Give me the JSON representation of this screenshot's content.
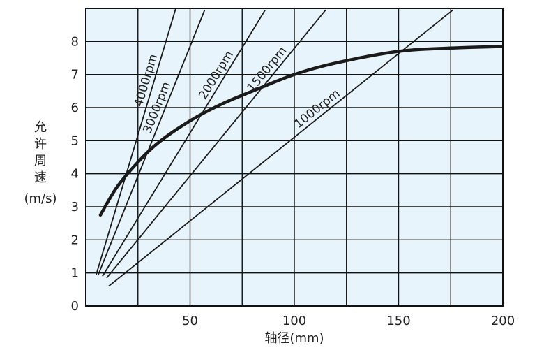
{
  "chart_data": {
    "type": "line",
    "title": "",
    "xlabel": "轴径(mm)",
    "ylabel_chars": [
      "允",
      "许",
      "周",
      "速"
    ],
    "ylabel_unit": "(m/s)",
    "xlim": [
      0,
      200
    ],
    "ylim": [
      0,
      9
    ],
    "x_ticks": [
      50,
      100,
      150,
      200
    ],
    "y_ticks": [
      0,
      1,
      2,
      3,
      4,
      5,
      6,
      7,
      8
    ],
    "grid": true,
    "background": "#e8f4fb",
    "line_color": "#1a1a1a",
    "curve": {
      "points": [
        [
          7,
          2.75
        ],
        [
          15,
          3.6
        ],
        [
          25,
          4.35
        ],
        [
          35,
          4.95
        ],
        [
          50,
          5.6
        ],
        [
          65,
          6.1
        ],
        [
          80,
          6.5
        ],
        [
          100,
          7.0
        ],
        [
          120,
          7.35
        ],
        [
          150,
          7.7
        ],
        [
          175,
          7.8
        ],
        [
          200,
          7.85
        ]
      ]
    },
    "series": [
      {
        "name": "4000rpm",
        "x": [
          5,
          55
        ],
        "y": [
          0.95,
          11.5
        ]
      },
      {
        "name": "3000rpm",
        "x": [
          6,
          57
        ],
        "y": [
          0.95,
          8.95
        ]
      },
      {
        "name": "2000rpm",
        "x": [
          8,
          86
        ],
        "y": [
          0.9,
          8.95
        ]
      },
      {
        "name": "1500rpm",
        "x": [
          10,
          115
        ],
        "y": [
          0.85,
          8.95
        ]
      },
      {
        "name": "1000rpm",
        "x": [
          11,
          176
        ],
        "y": [
          0.6,
          8.95
        ]
      }
    ]
  }
}
